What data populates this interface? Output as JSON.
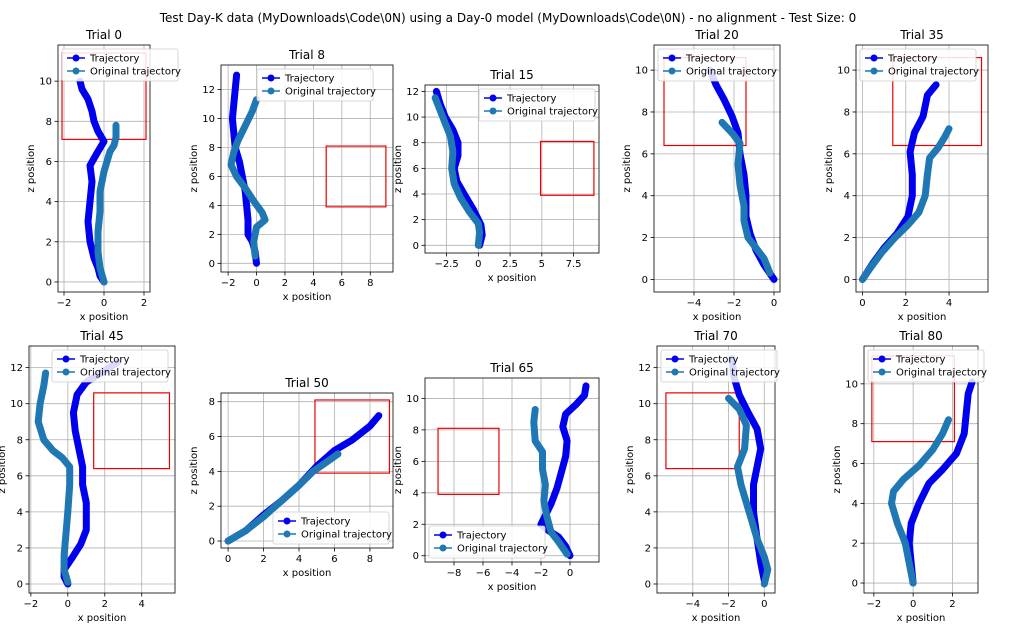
{
  "figure_title": "Test Day-K data (MyDownloads\\Code\\0N) using a Day-0 model (MyDownloads\\Code\\0N) - no alignment - Test Size: 0",
  "colors": {
    "trajectory": "#0000ee",
    "original": "#1f77b4",
    "target": "#ee0000",
    "grid": "#b0b0b0"
  },
  "legend_labels": [
    "Trajectory",
    "Original trajectory"
  ],
  "chart_data": [
    {
      "type": "line",
      "title": "Trial 0",
      "xlabel": "x position",
      "ylabel": "z position",
      "xlim": [
        -2.3,
        2.3
      ],
      "ylim": [
        -0.5,
        11.8
      ],
      "xticks": [
        -2,
        0,
        2
      ],
      "yticks": [
        0,
        2,
        4,
        6,
        8,
        10
      ],
      "legend": "upper-left",
      "target": {
        "x0": -2.1,
        "x1": 2.1,
        "y0": 7.1,
        "y1": 11.4
      },
      "series": [
        {
          "name": "Trajectory",
          "x": [
            -1.2,
            -1.1,
            -0.8,
            -0.6,
            -0.5,
            -0.3,
            0.0,
            -0.3,
            -0.7,
            -0.6,
            -0.7,
            -0.8,
            -0.7,
            -0.5,
            -0.3,
            -0.2,
            0.0
          ],
          "y": [
            10.0,
            9.6,
            9.1,
            8.5,
            8.0,
            7.5,
            7.0,
            6.5,
            5.8,
            5.0,
            4.0,
            3.0,
            2.0,
            1.2,
            0.7,
            0.3,
            0.0
          ]
        },
        {
          "name": "Original trajectory",
          "x": [
            0.6,
            0.6,
            0.5,
            0.3,
            0.0,
            -0.2,
            -0.2,
            -0.3,
            -0.3,
            -0.2,
            0.0
          ],
          "y": [
            7.8,
            7.2,
            6.8,
            6.5,
            5.5,
            4.5,
            3.5,
            2.5,
            1.5,
            0.7,
            0.0
          ]
        }
      ]
    },
    {
      "type": "line",
      "title": "Trial 8",
      "xlabel": "x position",
      "ylabel": "z position",
      "xlim": [
        -2.5,
        9.6
      ],
      "ylim": [
        -0.6,
        13.7
      ],
      "xticks": [
        -2,
        0,
        2,
        4,
        6,
        8
      ],
      "yticks": [
        0,
        2,
        4,
        6,
        8,
        10,
        12
      ],
      "legend": "upper-center",
      "target": {
        "x0": 4.9,
        "x1": 9.1,
        "y0": 3.9,
        "y1": 8.1
      },
      "series": [
        {
          "name": "Trajectory",
          "x": [
            -1.4,
            -1.5,
            -1.6,
            -1.7,
            -1.6,
            -1.5,
            -1.2,
            -1.0,
            -0.8,
            -0.7,
            -0.6,
            -0.6,
            -0.3,
            -0.1,
            0.0
          ],
          "y": [
            13.0,
            12.0,
            11.0,
            10.0,
            9.0,
            8.0,
            7.0,
            6.0,
            5.0,
            4.0,
            3.0,
            2.0,
            1.5,
            0.8,
            0.0
          ]
        },
        {
          "name": "Original trajectory",
          "x": [
            0.0,
            -0.3,
            -0.8,
            -1.3,
            -1.6,
            -1.8,
            -1.4,
            -0.8,
            -0.2,
            0.4,
            0.6,
            0.0,
            -0.2,
            -0.1
          ],
          "y": [
            11.3,
            10.5,
            9.5,
            8.5,
            7.7,
            6.8,
            6.0,
            5.2,
            4.3,
            3.5,
            3.0,
            2.5,
            1.5,
            0.5
          ]
        }
      ]
    },
    {
      "type": "line",
      "title": "Trial 15",
      "xlabel": "x position",
      "ylabel": "z position",
      "xlim": [
        -4.2,
        9.5
      ],
      "ylim": [
        -0.6,
        12.5
      ],
      "xticks": [
        -2.5,
        0.0,
        2.5,
        5.0,
        7.5
      ],
      "yticks": [
        0,
        2,
        4,
        6,
        8,
        10,
        12
      ],
      "legend": "upper-right",
      "target": {
        "x0": 4.9,
        "x1": 9.1,
        "y0": 3.9,
        "y1": 8.1
      },
      "series": [
        {
          "name": "Trajectory",
          "x": [
            -3.3,
            -3.0,
            -2.6,
            -2.0,
            -1.6,
            -1.6,
            -1.9,
            -1.7,
            -1.0,
            -0.4,
            0.2,
            0.3,
            0.1
          ],
          "y": [
            12.0,
            11.0,
            10.0,
            9.0,
            8.0,
            7.0,
            6.0,
            5.0,
            3.8,
            2.8,
            1.6,
            0.8,
            0.0
          ]
        },
        {
          "name": "Original trajectory",
          "x": [
            -3.4,
            -3.0,
            -2.6,
            -2.2,
            -2.0,
            -2.1,
            -1.9,
            -1.4,
            -0.7,
            0.0,
            0.1,
            0.0
          ],
          "y": [
            11.5,
            10.5,
            9.5,
            8.5,
            7.3,
            6.0,
            4.8,
            3.7,
            2.6,
            1.7,
            1.0,
            0.0
          ]
        }
      ]
    },
    {
      "type": "line",
      "title": "Trial 20",
      "xlabel": "x position",
      "ylabel": "z position",
      "xlim": [
        -6.0,
        0.3
      ],
      "ylim": [
        -0.6,
        11.2
      ],
      "xticks": [
        -4,
        -2,
        0
      ],
      "yticks": [
        0,
        2,
        4,
        6,
        8,
        10
      ],
      "legend": "upper-left",
      "target": {
        "x0": -5.5,
        "x1": -1.4,
        "y0": 6.4,
        "y1": 10.6
      },
      "series": [
        {
          "name": "Trajectory",
          "x": [
            -3.2,
            -2.9,
            -2.5,
            -2.1,
            -1.8,
            -1.7,
            -1.5,
            -1.4,
            -1.4,
            -1.2,
            -0.9,
            -0.5,
            0.0
          ],
          "y": [
            10.0,
            9.3,
            8.6,
            7.8,
            7.0,
            6.0,
            5.0,
            4.0,
            3.0,
            2.2,
            1.4,
            0.7,
            0.0
          ]
        },
        {
          "name": "Original trajectory",
          "x": [
            -2.6,
            -2.1,
            -1.7,
            -1.8,
            -1.7,
            -1.5,
            -1.5,
            -1.3,
            -0.9,
            -0.5,
            -0.2
          ],
          "y": [
            7.5,
            7.0,
            6.5,
            5.5,
            4.5,
            3.5,
            2.8,
            2.0,
            1.5,
            1.0,
            0.3
          ]
        }
      ]
    },
    {
      "type": "line",
      "title": "Trial 35",
      "xlabel": "x position",
      "ylabel": "z position",
      "xlim": [
        -0.3,
        5.8
      ],
      "ylim": [
        -0.6,
        11.2
      ],
      "xticks": [
        0,
        2,
        4
      ],
      "yticks": [
        0,
        2,
        4,
        6,
        8,
        10
      ],
      "legend": "upper-left",
      "target": {
        "x0": 1.4,
        "x1": 5.5,
        "y0": 6.4,
        "y1": 10.6
      },
      "series": [
        {
          "name": "Trajectory",
          "x": [
            3.4,
            3.0,
            2.8,
            2.4,
            2.2,
            2.3,
            2.3,
            2.1,
            1.6,
            1.0,
            0.5,
            0.0
          ],
          "y": [
            9.3,
            8.8,
            7.8,
            7.0,
            6.1,
            5.0,
            4.0,
            3.0,
            2.2,
            1.5,
            0.8,
            0.0
          ]
        },
        {
          "name": "Original trajectory",
          "x": [
            4.0,
            3.8,
            3.5,
            3.1,
            3.0,
            2.9,
            2.6,
            2.1,
            1.5,
            0.9,
            0.4,
            0.0
          ],
          "y": [
            7.2,
            6.8,
            6.3,
            5.8,
            5.0,
            4.0,
            3.2,
            2.6,
            2.0,
            1.3,
            0.6,
            0.0
          ]
        }
      ]
    },
    {
      "type": "line",
      "title": "Trial 45",
      "xlabel": "x position",
      "ylabel": "z position",
      "xlim": [
        -2.1,
        5.8
      ],
      "ylim": [
        -0.5,
        13.2
      ],
      "xticks": [
        -2,
        0,
        2,
        4
      ],
      "yticks": [
        0,
        2,
        4,
        6,
        8,
        10,
        12
      ],
      "legend": "upper-center",
      "target": {
        "x0": 1.4,
        "x1": 5.5,
        "y0": 6.4,
        "y1": 10.6
      },
      "series": [
        {
          "name": "Trajectory",
          "x": [
            2.7,
            1.8,
            1.0,
            0.5,
            0.3,
            0.4,
            0.6,
            0.8,
            0.8,
            1.0,
            1.0,
            0.7,
            0.2,
            -0.2,
            -0.2,
            0.0
          ],
          "y": [
            12.3,
            11.7,
            11.2,
            10.5,
            9.5,
            8.5,
            7.5,
            6.5,
            5.5,
            4.5,
            3.0,
            2.2,
            1.4,
            0.8,
            0.4,
            0.0
          ]
        },
        {
          "name": "Original trajectory",
          "x": [
            -1.2,
            -1.3,
            -1.5,
            -1.6,
            -1.3,
            -0.8,
            -0.3,
            0.1,
            0.1,
            0.0,
            -0.1,
            -0.2,
            -0.2,
            0.0
          ],
          "y": [
            11.7,
            11.0,
            10.0,
            9.0,
            8.0,
            7.4,
            7.0,
            6.5,
            5.5,
            4.0,
            2.8,
            1.6,
            0.8,
            0.1
          ]
        }
      ]
    },
    {
      "type": "line",
      "title": "Trial 50",
      "xlabel": "x position",
      "ylabel": "z position",
      "xlim": [
        -0.4,
        9.3
      ],
      "ylim": [
        -0.4,
        8.5
      ],
      "xticks": [
        0,
        2,
        4,
        6,
        8
      ],
      "yticks": [
        0,
        2,
        4,
        6,
        8
      ],
      "legend": "lower-right",
      "target": {
        "x0": 4.9,
        "x1": 9.1,
        "y0": 3.9,
        "y1": 8.1
      },
      "series": [
        {
          "name": "Trajectory",
          "x": [
            0.0,
            1.0,
            2.0,
            3.0,
            4.0,
            5.0,
            6.0,
            7.0,
            8.0,
            8.5
          ],
          "y": [
            0.0,
            0.6,
            1.5,
            2.3,
            3.2,
            4.3,
            5.2,
            5.8,
            6.6,
            7.2
          ]
        },
        {
          "name": "Original trajectory",
          "x": [
            0.0,
            1.0,
            2.0,
            3.0,
            4.0,
            4.8,
            5.5,
            6.2
          ],
          "y": [
            0.0,
            0.6,
            1.4,
            2.3,
            3.2,
            4.0,
            4.5,
            5.0
          ]
        }
      ]
    },
    {
      "type": "line",
      "title": "Trial 65",
      "xlabel": "x position",
      "ylabel": "z position",
      "xlim": [
        -10.0,
        2.0
      ],
      "ylim": [
        -0.4,
        11.3
      ],
      "xticks": [
        -8,
        -6,
        -4,
        -2,
        0
      ],
      "yticks": [
        0,
        2,
        4,
        6,
        8,
        10
      ],
      "legend": "lower-left",
      "target": {
        "x0": -9.1,
        "x1": -4.9,
        "y0": 3.9,
        "y1": 8.1
      },
      "series": [
        {
          "name": "Trajectory",
          "x": [
            1.1,
            1.0,
            0.4,
            -0.3,
            -0.5,
            -0.2,
            -0.3,
            -0.6,
            -0.9,
            -1.3,
            -2.0,
            -1.5,
            -0.8,
            -0.3,
            0.0
          ],
          "y": [
            10.8,
            10.2,
            9.6,
            9.0,
            8.2,
            7.3,
            6.3,
            5.3,
            4.3,
            3.3,
            2.0,
            1.6,
            1.2,
            0.6,
            0.0
          ]
        },
        {
          "name": "Original trajectory",
          "x": [
            -2.4,
            -2.5,
            -2.4,
            -1.9,
            -1.9,
            -1.7,
            -1.8,
            -1.6,
            -1.3,
            -0.8,
            -0.2
          ],
          "y": [
            9.3,
            8.5,
            7.3,
            6.6,
            5.5,
            4.5,
            3.5,
            2.5,
            1.5,
            0.9,
            0.1
          ]
        }
      ]
    },
    {
      "type": "line",
      "title": "Trial 70",
      "xlabel": "x position",
      "ylabel": "z position",
      "xlim": [
        -6.0,
        0.6
      ],
      "ylim": [
        -0.5,
        13.2
      ],
      "xticks": [
        -4,
        -2,
        0
      ],
      "yticks": [
        0,
        2,
        4,
        6,
        8,
        10,
        12
      ],
      "legend": "upper-left",
      "target": {
        "x0": -5.5,
        "x1": -1.4,
        "y0": 6.4,
        "y1": 10.6
      },
      "series": [
        {
          "name": "Trajectory",
          "x": [
            -1.8,
            -1.7,
            -1.4,
            -0.9,
            -0.4,
            -0.2,
            -0.4,
            -0.6,
            -0.6,
            -0.4,
            -0.2,
            0.0
          ],
          "y": [
            12.5,
            11.5,
            10.5,
            9.5,
            8.6,
            7.5,
            6.5,
            5.5,
            4.0,
            2.5,
            1.2,
            0.2
          ]
        },
        {
          "name": "Original trajectory",
          "x": [
            -2.0,
            -1.4,
            -1.0,
            -1.1,
            -1.5,
            -1.3,
            -1.0,
            -0.7,
            -0.4,
            0.0,
            0.2,
            0.0
          ],
          "y": [
            10.3,
            9.7,
            8.8,
            7.5,
            6.5,
            5.5,
            4.5,
            3.5,
            2.5,
            1.5,
            0.8,
            0.0
          ]
        }
      ]
    },
    {
      "type": "line",
      "title": "Trial 80",
      "xlabel": "x position",
      "ylabel": "z position",
      "xlim": [
        -2.5,
        3.3
      ],
      "ylim": [
        -0.5,
        11.9
      ],
      "xticks": [
        -2,
        0,
        2
      ],
      "yticks": [
        0,
        2,
        4,
        6,
        8,
        10
      ],
      "legend": "upper-left",
      "target": {
        "x0": -2.1,
        "x1": 2.1,
        "y0": 7.1,
        "y1": 11.4
      },
      "series": [
        {
          "name": "Trajectory",
          "x": [
            3.0,
            2.8,
            2.7,
            2.6,
            2.2,
            1.5,
            0.8,
            0.3,
            -0.1,
            -0.2,
            -0.1,
            0.0
          ],
          "y": [
            10.1,
            9.5,
            8.5,
            7.5,
            6.5,
            5.7,
            5.0,
            4.0,
            3.0,
            2.0,
            1.0,
            0.0
          ]
        },
        {
          "name": "Original trajectory",
          "x": [
            1.8,
            1.5,
            1.0,
            0.3,
            -0.5,
            -1.0,
            -1.1,
            -0.8,
            -0.4,
            -0.2,
            0.0
          ],
          "y": [
            8.2,
            7.5,
            6.7,
            5.9,
            5.2,
            4.6,
            4.0,
            3.0,
            2.0,
            1.0,
            0.0
          ]
        }
      ]
    }
  ]
}
